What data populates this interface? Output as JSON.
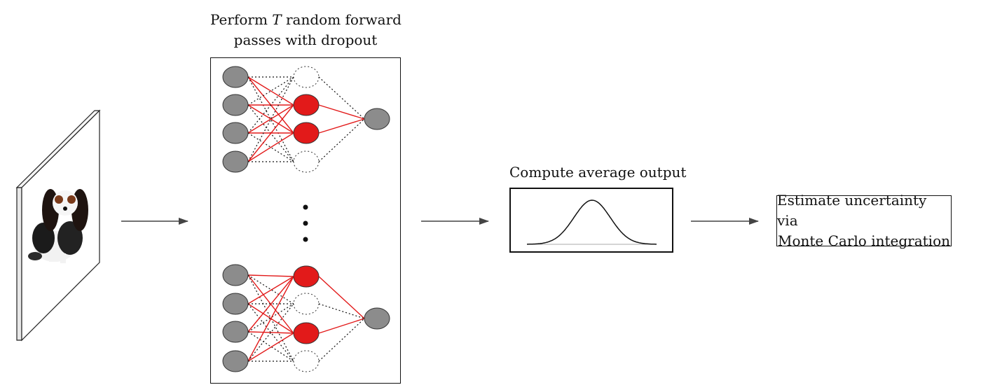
{
  "title_nn": {
    "line1_pre": "Perform",
    "variable": "T",
    "line1_post": "random forward",
    "line2": "passes with dropout"
  },
  "avg_label": "Compute average output",
  "uncertainty": {
    "line1": "Estimate uncertainty via",
    "line2": "Monte Carlo integration"
  },
  "input_image": {
    "icon": "dog-photo-icon",
    "description_visible": false
  },
  "colors": {
    "active_neuron": "#e21a1a",
    "inactive_neuron": "#8c8c8c",
    "active_edge": "#e21a1a",
    "dropped_edge": "#111111",
    "arrow": "#444444"
  },
  "networks": [
    {
      "hidden_active": [
        true,
        true,
        false
      ],
      "pattern": "top"
    },
    {
      "hidden_active": [
        true,
        false,
        true
      ],
      "pattern": "bottom"
    }
  ]
}
